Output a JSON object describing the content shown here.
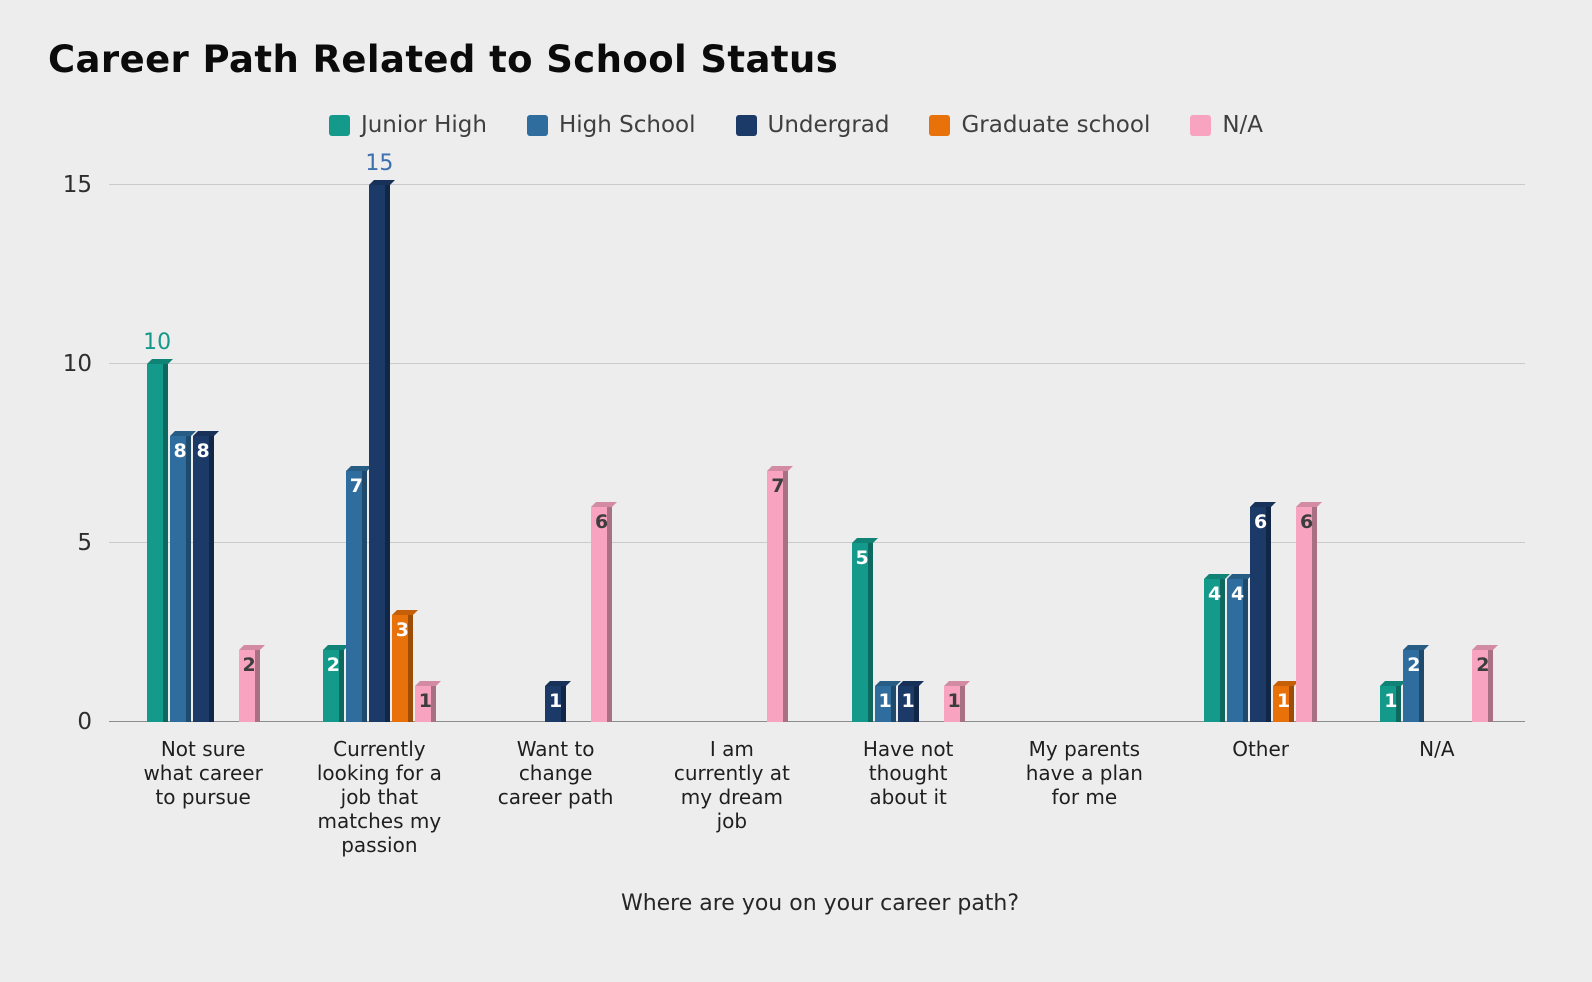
{
  "page": {
    "background": "#ededed"
  },
  "chart_data": {
    "type": "bar",
    "title": "Career Path Related to School Status",
    "xlabel": "Where are you on your career path?",
    "ylabel": "",
    "ylim": [
      0,
      15
    ],
    "yticks": [
      0,
      5,
      10,
      15
    ],
    "grid": true,
    "legend_position": "top",
    "categories": [
      "Not sure\nwhat career\nto pursue",
      "Currently\nlooking for a\njob that\nmatches my\npassion",
      "Want to\nchange\ncareer path",
      "I am\ncurrently at\nmy dream\njob",
      "Have not\nthought\nabout it",
      "My parents\nhave a plan\nfor me",
      "Other",
      "N/A"
    ],
    "series": [
      {
        "name": "Junior High",
        "color": "#139a8b",
        "value_label_color": "#ffffff",
        "values": [
          10,
          2,
          0,
          0,
          5,
          0,
          4,
          1
        ]
      },
      {
        "name": "High School",
        "color": "#2e6d9d",
        "value_label_color": "#ffffff",
        "values": [
          8,
          7,
          0,
          0,
          1,
          0,
          4,
          2
        ]
      },
      {
        "name": "Undergrad",
        "color": "#1b3a67",
        "value_label_color": "#ffffff",
        "values": [
          8,
          15,
          1,
          0,
          1,
          0,
          6,
          0
        ]
      },
      {
        "name": "Graduate school",
        "color": "#e8710a",
        "value_label_color": "#ffffff",
        "values": [
          0,
          3,
          0,
          0,
          0,
          0,
          1,
          0
        ]
      },
      {
        "name": "N/A",
        "color": "#f8a3c0",
        "value_label_color": "#3d3d3d",
        "values": [
          2,
          1,
          6,
          7,
          1,
          0,
          6,
          2
        ]
      }
    ],
    "annotations_above": [
      {
        "series": 0,
        "category": 0,
        "value": 10,
        "color": "#14988a"
      },
      {
        "series": 2,
        "category": 1,
        "value": 15,
        "color": "#3b6fad"
      }
    ]
  }
}
